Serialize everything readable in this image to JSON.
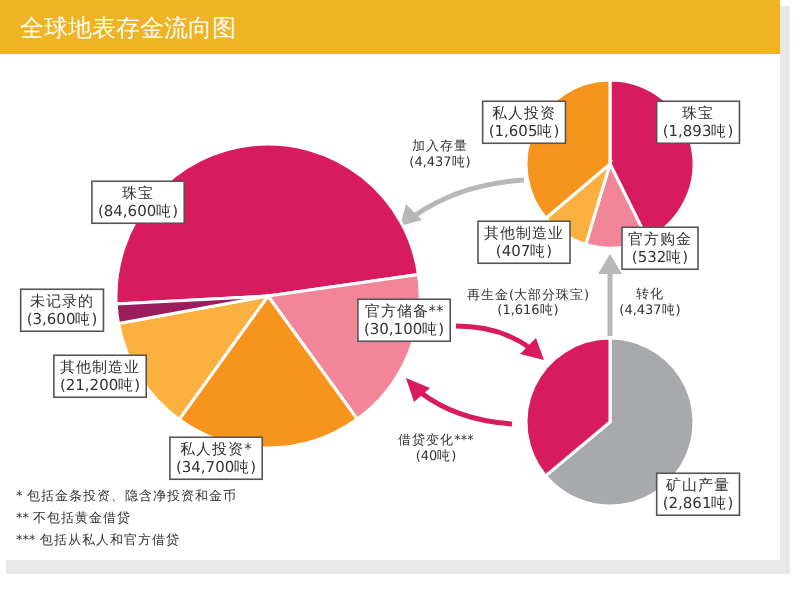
{
  "chart_data": [
    {
      "type": "pie",
      "title": "全球地表存金流向图",
      "categories": [
        "珠宝",
        "官方储备**",
        "私人投资*",
        "其他制造业",
        "未记录的"
      ],
      "values": [
        84600,
        30100,
        34700,
        21200,
        3600
      ],
      "colors": [
        "#d81b5f",
        "#f38599",
        "#f7941d",
        "#fbb040",
        "#9b1d5e"
      ],
      "value_labels": [
        "(84,600吨)",
        "(30,100吨)",
        "(34,700吨)",
        "(21,200吨)",
        "(3,600吨)"
      ],
      "annotations": [
        "* 包括金条投资、隐含净投资和金币",
        "** 不包括黄金借贷",
        "*** 包括从私人和官方借贷"
      ]
    },
    {
      "type": "pie",
      "categories": [
        "珠宝",
        "官方购金",
        "其他制造业",
        "私人投资"
      ],
      "values": [
        1893,
        532,
        407,
        1605
      ],
      "colors": [
        "#d81b5f",
        "#f38599",
        "#fbb040",
        "#f7941d"
      ],
      "value_labels": [
        "(1,893吨)",
        "(532吨)",
        "(407吨)",
        "(1,605吨)"
      ],
      "annotations": [
        "加入存量\n(4,437吨)"
      ]
    },
    {
      "type": "pie",
      "categories": [
        "矿山产量",
        "再生金(大部分珠宝)"
      ],
      "values": [
        2861,
        1616
      ],
      "colors": [
        "#a7a9ac",
        "#d81b5f"
      ],
      "value_labels": [
        "(2,861吨)",
        "(1,616吨)"
      ],
      "annotations": [
        "转化\n(4,437吨)",
        "借贷变化***\n(40吨)"
      ]
    }
  ]
}
